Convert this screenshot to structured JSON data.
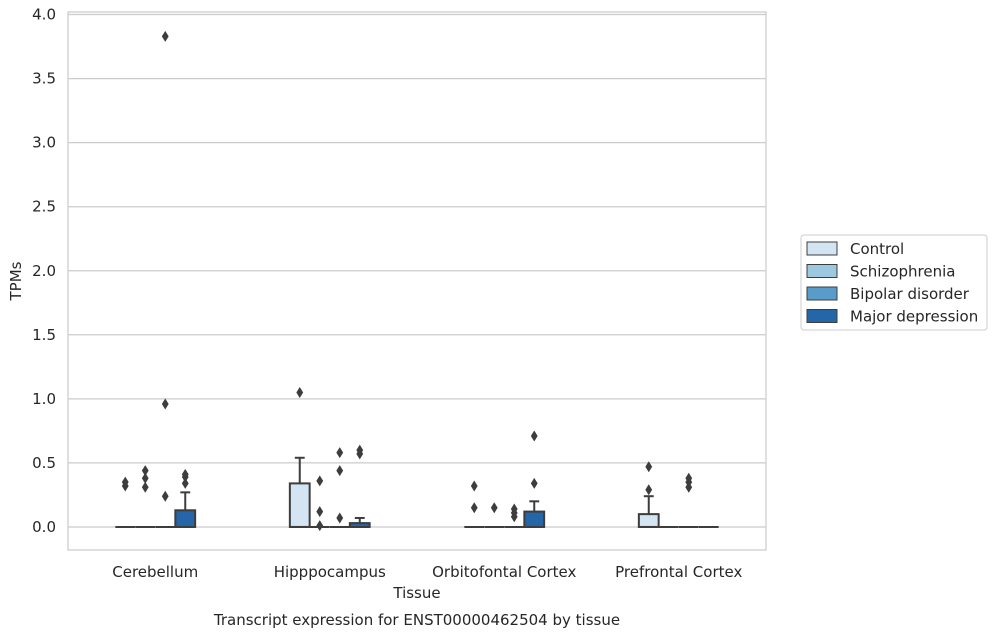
{
  "chart_data": {
    "type": "box",
    "title": "Transcript expression for ENST00000462504 by tissue",
    "xlabel": "Tissue",
    "ylabel": "TPMs",
    "ylim": [
      -0.18,
      4.02
    ],
    "yticks": [
      "0.0",
      "0.5",
      "1.0",
      "1.5",
      "2.0",
      "2.5",
      "3.0",
      "3.5",
      "4.0"
    ],
    "grid": "horizontal",
    "legend_position": "right",
    "categories": [
      "Cerebellum",
      "Hipppocampus",
      "Orbitofontal Cortex",
      "Prefrontal Cortex"
    ],
    "series": [
      {
        "name": "Control",
        "color": "#d3e4f3",
        "boxes": [
          {
            "q1": 0,
            "median": 0,
            "q3": 0,
            "whisker_low": 0,
            "whisker_high": 0,
            "outliers": [
              0.32,
              0.35
            ]
          },
          {
            "q1": 0,
            "median": 0,
            "q3": 0.34,
            "whisker_low": 0,
            "whisker_high": 0.54,
            "outliers": [
              1.05
            ]
          },
          {
            "q1": 0,
            "median": 0,
            "q3": 0,
            "whisker_low": 0,
            "whisker_high": 0,
            "outliers": [
              0.15,
              0.32
            ]
          },
          {
            "q1": 0,
            "median": 0,
            "q3": 0.1,
            "whisker_low": 0,
            "whisker_high": 0.24,
            "outliers": [
              0.29,
              0.47
            ]
          }
        ]
      },
      {
        "name": "Schizophrenia",
        "color": "#9ec8e0",
        "boxes": [
          {
            "q1": 0,
            "median": 0,
            "q3": 0,
            "whisker_low": 0,
            "whisker_high": 0,
            "outliers": [
              0.31,
              0.38,
              0.44
            ]
          },
          {
            "q1": 0,
            "median": 0,
            "q3": 0,
            "whisker_low": 0,
            "whisker_high": 0,
            "outliers": [
              0.01,
              0.12,
              0.36
            ]
          },
          {
            "q1": 0,
            "median": 0,
            "q3": 0,
            "whisker_low": 0,
            "whisker_high": 0,
            "outliers": [
              0.15
            ]
          },
          {
            "q1": 0,
            "median": 0,
            "q3": 0,
            "whisker_low": 0,
            "whisker_high": 0,
            "outliers": []
          }
        ]
      },
      {
        "name": "Bipolar disorder",
        "color": "#5a9cc9",
        "boxes": [
          {
            "q1": 0,
            "median": 0,
            "q3": 0,
            "whisker_low": 0,
            "whisker_high": 0,
            "outliers": [
              0.24,
              0.96,
              3.83
            ]
          },
          {
            "q1": 0,
            "median": 0,
            "q3": 0,
            "whisker_low": 0,
            "whisker_high": 0,
            "outliers": [
              0.07,
              0.44,
              0.58
            ]
          },
          {
            "q1": 0,
            "median": 0,
            "q3": 0,
            "whisker_low": 0,
            "whisker_high": 0,
            "outliers": [
              0.08,
              0.11,
              0.14
            ]
          },
          {
            "q1": 0,
            "median": 0,
            "q3": 0,
            "whisker_low": 0,
            "whisker_high": 0,
            "outliers": [
              0.31,
              0.35,
              0.38
            ]
          }
        ]
      },
      {
        "name": "Major depression",
        "color": "#2566a8",
        "boxes": [
          {
            "q1": 0,
            "median": 0,
            "q3": 0.13,
            "whisker_low": 0,
            "whisker_high": 0.27,
            "outliers": [
              0.34,
              0.39,
              0.41
            ]
          },
          {
            "q1": 0,
            "median": 0,
            "q3": 0.03,
            "whisker_low": 0,
            "whisker_high": 0.07,
            "outliers": [
              0.57,
              0.6
            ]
          },
          {
            "q1": 0,
            "median": 0,
            "q3": 0.12,
            "whisker_low": 0,
            "whisker_high": 0.2,
            "outliers": [
              0.34,
              0.71
            ]
          },
          {
            "q1": 0,
            "median": 0,
            "q3": 0,
            "whisker_low": 0,
            "whisker_high": 0,
            "outliers": []
          }
        ]
      }
    ]
  }
}
